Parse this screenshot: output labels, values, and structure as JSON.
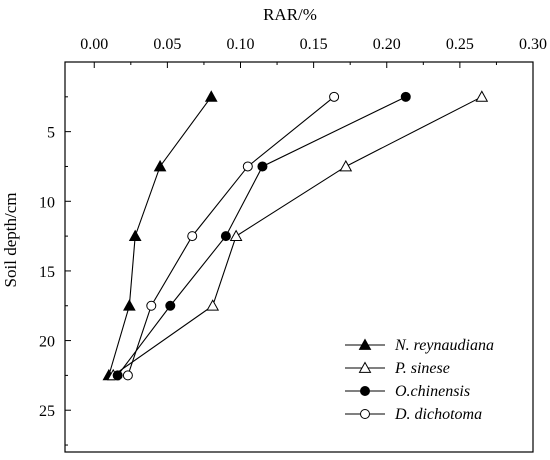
{
  "chart_data": {
    "type": "line",
    "xlabel": "RAR/%",
    "ylabel": "Soil depth/cm",
    "xlim": [
      -0.02,
      0.3
    ],
    "ylim": [
      0,
      28
    ],
    "y_inverted": true,
    "x_axis_position": "top",
    "xticks": [
      0.0,
      0.05,
      0.1,
      0.15,
      0.2,
      0.25,
      0.3
    ],
    "xtick_labels": [
      "0.00",
      "0.05",
      "0.10",
      "0.15",
      "0.20",
      "0.25",
      "0.30"
    ],
    "yticks": [
      5,
      10,
      15,
      20,
      25
    ],
    "ytick_labels": [
      "5",
      "10",
      "15",
      "20",
      "25"
    ],
    "legend_position": "bottom-right",
    "grid": false,
    "series": [
      {
        "name": "N. reynaudiana",
        "marker": "filled-triangle",
        "points": [
          [
            0.08,
            2.5
          ],
          [
            0.045,
            7.5
          ],
          [
            0.028,
            12.5
          ],
          [
            0.024,
            17.5
          ],
          [
            0.01,
            22.5
          ]
        ]
      },
      {
        "name": "P. sinese",
        "marker": "open-triangle",
        "points": [
          [
            0.265,
            2.5
          ],
          [
            0.172,
            7.5
          ],
          [
            0.097,
            12.5
          ],
          [
            0.081,
            17.5
          ],
          [
            0.013,
            22.5
          ]
        ]
      },
      {
        "name": "O.chinensis",
        "marker": "filled-circle",
        "points": [
          [
            0.213,
            2.5
          ],
          [
            0.115,
            7.5
          ],
          [
            0.09,
            12.5
          ],
          [
            0.052,
            17.5
          ],
          [
            0.016,
            22.5
          ]
        ]
      },
      {
        "name": "D. dichotoma",
        "marker": "open-circle",
        "points": [
          [
            0.164,
            2.5
          ],
          [
            0.105,
            7.5
          ],
          [
            0.067,
            12.5
          ],
          [
            0.039,
            17.5
          ],
          [
            0.023,
            22.5
          ]
        ]
      }
    ]
  }
}
